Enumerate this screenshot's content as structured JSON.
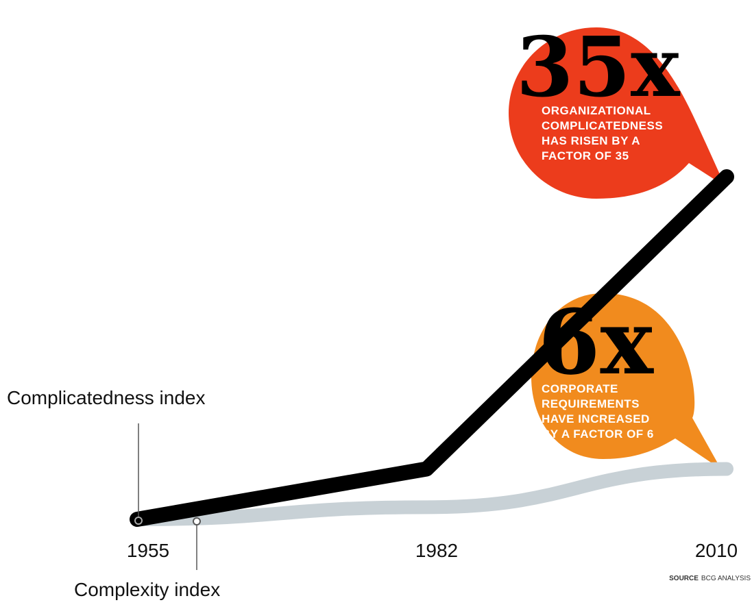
{
  "chart_data": {
    "type": "line",
    "x": [
      1955,
      1982,
      2010
    ],
    "series": [
      {
        "name": "Complicatedness index",
        "values": [
          1,
          6,
          35
        ],
        "color": "#000000"
      },
      {
        "name": "Complexity index",
        "values": [
          1,
          2.2,
          6
        ],
        "color": "#c8d1d6"
      }
    ],
    "tick_labels": [
      "1955",
      "1982",
      "2010"
    ],
    "callouts": [
      {
        "big": "35x",
        "lines": [
          "ORGANIZATIONAL",
          "COMPLICATEDNESS",
          "HAS RISEN BY A",
          "FACTOR OF 35"
        ],
        "color": "#ec3c1c"
      },
      {
        "big": "6x",
        "lines": [
          "CORPORATE",
          "REQUIREMENTS",
          "HAVE INCREASED",
          "BY A FACTOR OF 6"
        ],
        "color": "#f18b1e"
      }
    ],
    "source": {
      "label": "SOURCE",
      "text": "BCG ANALYSIS"
    },
    "grid": false,
    "legend": "none"
  }
}
